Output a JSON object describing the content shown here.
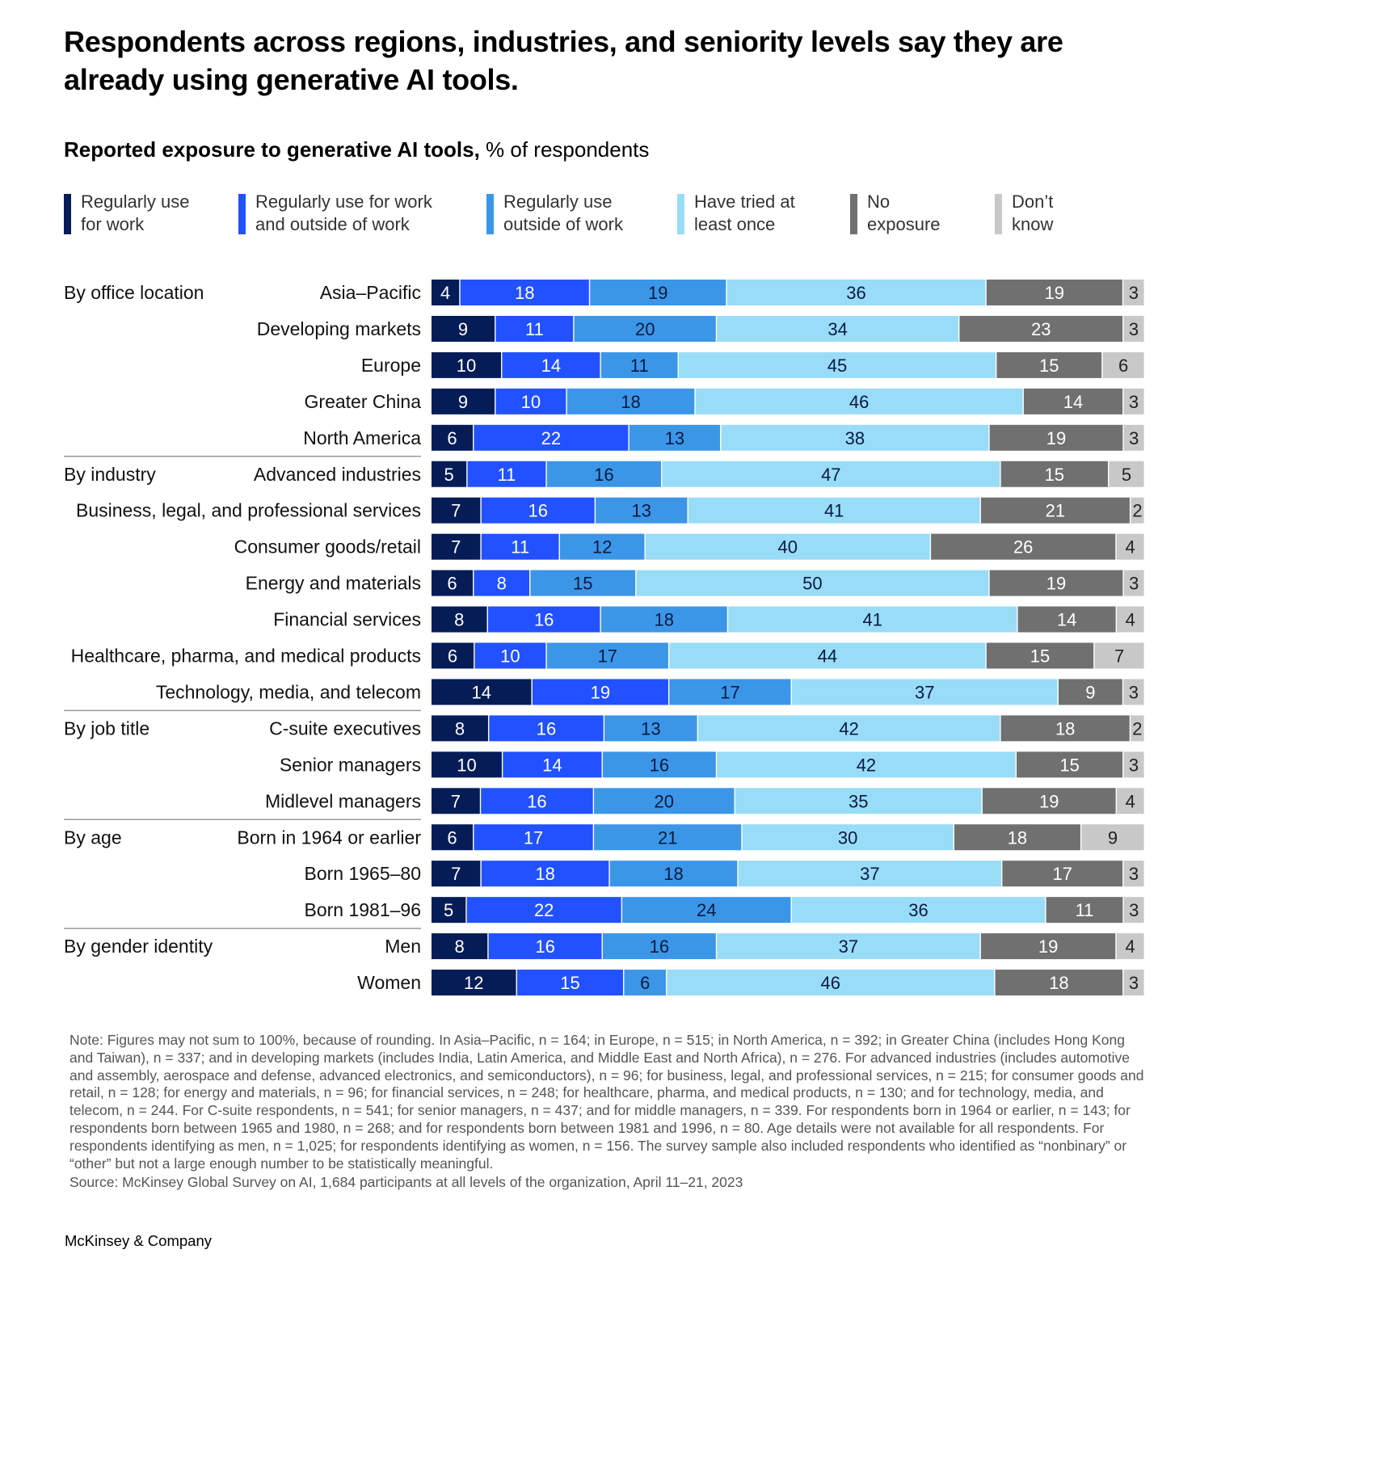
{
  "header": {
    "title": "Respondents across regions, industries, and seniority levels say they are already using generative AI tools.",
    "subtitle_bold": "Reported exposure to generative AI tools,",
    "subtitle_rest": " % of respondents"
  },
  "colors": {
    "divider": "#999999",
    "label_text": "#111111"
  },
  "footer": {
    "note": "Note: Figures may not sum to 100%, because of rounding. In Asia–Pacific, n = 164; in Europe, n = 515; in North America, n = 392; in Greater China (includes Hong Kong and Taiwan), n = 337; and in developing markets (includes India, Latin America, and Middle East and North Africa), n = 276. For advanced industries (includes automotive and assembly, aerospace and defense, advanced electronics, and semiconductors), n = 96; for business, legal, and professional services, n = 215; for consumer goods and retail, n = 128; for energy and materials, n = 96; for financial services, n = 248; for healthcare, pharma, and medical products, n = 130; and for technology, media, and telecom, n = 244. For C-suite respondents, n = 541; for senior managers, n = 437; and for middle managers, n = 339. For respondents born in 1964 or earlier, n = 143; for respondents born between 1965 and 1980, n = 268; and for respondents born between 1981 and 1996, n = 80. Age details were not available for all respondents. For respondents identifying as men, n = 1,025; for respondents identifying as women, n = 156. The survey sample also included respondents who identified as “nonbinary” or “other” but not a large enough number to be statistically meaningful.",
    "source": "Source: McKinsey Global Survey on AI, 1,684 participants at all levels of the organization, April 11–21, 2023",
    "brand": "McKinsey & Company"
  },
  "chart_data": {
    "type": "bar",
    "orientation": "horizontal",
    "stacked": true,
    "title": "Reported exposure to generative AI tools, % of respondents",
    "unit": "% of respondents",
    "xlim": [
      0,
      100
    ],
    "series": [
      {
        "name": "Regularly use for work",
        "color": "#051c57",
        "label_color": "#ffffff"
      },
      {
        "name": "Regularly use for work and outside of work",
        "color": "#2251ff",
        "label_color": "#ffffff"
      },
      {
        "name": "Regularly use outside of work",
        "color": "#3c96e8",
        "label_color": "#0a1a40"
      },
      {
        "name": "Have tried at least once",
        "color": "#99dcf8",
        "label_color": "#0a1a40"
      },
      {
        "name": "No exposure",
        "color": "#707070",
        "label_color": "#ffffff"
      },
      {
        "name": "Don’t know",
        "color": "#c8c8c8",
        "label_color": "#222222"
      }
    ],
    "groups": [
      {
        "name": "By office location",
        "rows": [
          {
            "label": "Asia–Pacific",
            "values": [
              4,
              18,
              19,
              36,
              19,
              3
            ]
          },
          {
            "label": "Developing markets",
            "values": [
              9,
              11,
              20,
              34,
              23,
              3
            ]
          },
          {
            "label": "Europe",
            "values": [
              10,
              14,
              11,
              45,
              15,
              6
            ]
          },
          {
            "label": "Greater China",
            "values": [
              9,
              10,
              18,
              46,
              14,
              3
            ]
          },
          {
            "label": "North America",
            "values": [
              6,
              22,
              13,
              38,
              19,
              3
            ]
          }
        ]
      },
      {
        "name": "By industry",
        "rows": [
          {
            "label": "Advanced industries",
            "values": [
              5,
              11,
              16,
              47,
              15,
              5
            ]
          },
          {
            "label": "Business, legal, and professional services",
            "values": [
              7,
              16,
              13,
              41,
              21,
              2
            ]
          },
          {
            "label": "Consumer goods/retail",
            "values": [
              7,
              11,
              12,
              40,
              26,
              4
            ]
          },
          {
            "label": "Energy and materials",
            "values": [
              6,
              8,
              15,
              50,
              19,
              3
            ]
          },
          {
            "label": "Financial services",
            "values": [
              8,
              16,
              18,
              41,
              14,
              4
            ]
          },
          {
            "label": "Healthcare, pharma, and medical products",
            "values": [
              6,
              10,
              17,
              44,
              15,
              7
            ]
          },
          {
            "label": "Technology, media, and telecom",
            "values": [
              14,
              19,
              17,
              37,
              9,
              3
            ]
          }
        ]
      },
      {
        "name": "By job title",
        "rows": [
          {
            "label": "C-suite executives",
            "values": [
              8,
              16,
              13,
              42,
              18,
              2
            ]
          },
          {
            "label": "Senior managers",
            "values": [
              10,
              14,
              16,
              42,
              15,
              3
            ]
          },
          {
            "label": "Midlevel managers",
            "values": [
              7,
              16,
              20,
              35,
              19,
              4
            ]
          }
        ]
      },
      {
        "name": "By age",
        "rows": [
          {
            "label": "Born in 1964 or earlier",
            "values": [
              6,
              17,
              21,
              30,
              18,
              9
            ]
          },
          {
            "label": "Born 1965–80",
            "values": [
              7,
              18,
              18,
              37,
              17,
              3
            ]
          },
          {
            "label": "Born 1981–96",
            "values": [
              5,
              22,
              24,
              36,
              11,
              3
            ]
          }
        ]
      },
      {
        "name": "By gender identity",
        "rows": [
          {
            "label": "Men",
            "values": [
              8,
              16,
              16,
              37,
              19,
              4
            ]
          },
          {
            "label": "Women",
            "values": [
              12,
              15,
              6,
              46,
              18,
              3
            ]
          }
        ]
      }
    ]
  }
}
